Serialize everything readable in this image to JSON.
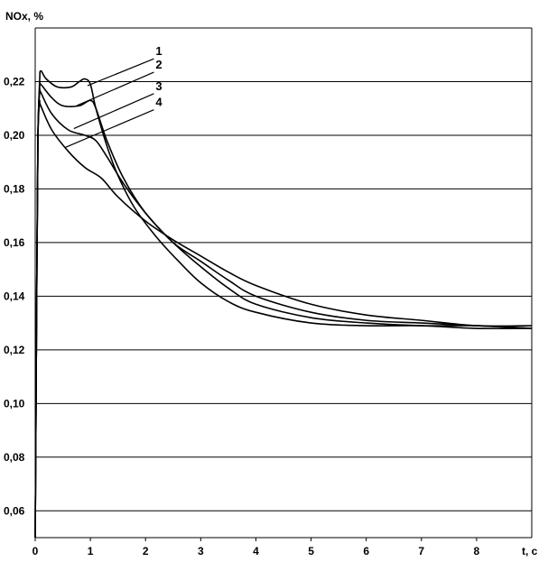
{
  "chart_data": {
    "type": "line",
    "ylabel": "NOx, %",
    "xlabel": "t, c",
    "xlim": [
      0,
      9
    ],
    "ylim": [
      0.05,
      0.24
    ],
    "grid": {
      "horizontal": true,
      "vertical": false
    },
    "x_ticks": [
      {
        "value": 0,
        "label": "0"
      },
      {
        "value": 1,
        "label": "1"
      },
      {
        "value": 2,
        "label": "2"
      },
      {
        "value": 3,
        "label": "3"
      },
      {
        "value": 4,
        "label": "4"
      },
      {
        "value": 5,
        "label": "5"
      },
      {
        "value": 6,
        "label": "6"
      },
      {
        "value": 7,
        "label": "7"
      },
      {
        "value": 8,
        "label": "8"
      }
    ],
    "y_ticks": [
      {
        "value": 0.06,
        "label": "0,06"
      },
      {
        "value": 0.08,
        "label": "0,08"
      },
      {
        "value": 0.1,
        "label": "0,10"
      },
      {
        "value": 0.12,
        "label": "0,12"
      },
      {
        "value": 0.14,
        "label": "0,14"
      },
      {
        "value": 0.16,
        "label": "0,16"
      },
      {
        "value": 0.18,
        "label": "0,18"
      },
      {
        "value": 0.2,
        "label": "0,20"
      },
      {
        "value": 0.22,
        "label": "0,22"
      }
    ],
    "series": [
      {
        "label": "1",
        "x": [
          0,
          0.03,
          0.05,
          0.08,
          0.1,
          0.2,
          0.4,
          0.65,
          0.8,
          0.9,
          1.0,
          1.1,
          1.3,
          1.5,
          1.8,
          2.2,
          2.6,
          3.0,
          3.5,
          4.0,
          5.0,
          6.0,
          7.0,
          8.0,
          9.0
        ],
        "y": [
          0.05,
          0.15,
          0.2,
          0.22,
          0.224,
          0.221,
          0.218,
          0.218,
          0.22,
          0.221,
          0.219,
          0.21,
          0.196,
          0.185,
          0.173,
          0.162,
          0.153,
          0.145,
          0.138,
          0.134,
          0.13,
          0.129,
          0.129,
          0.128,
          0.128
        ]
      },
      {
        "label": "2",
        "x": [
          0,
          0.03,
          0.05,
          0.08,
          0.1,
          0.3,
          0.5,
          0.8,
          1.0,
          1.1,
          1.3,
          1.6,
          2.0,
          2.5,
          3.0,
          3.5,
          4.0,
          5.0,
          6.0,
          7.0,
          8.0,
          9.0
        ],
        "y": [
          0.05,
          0.15,
          0.2,
          0.218,
          0.219,
          0.214,
          0.211,
          0.211,
          0.213,
          0.21,
          0.198,
          0.184,
          0.171,
          0.16,
          0.151,
          0.143,
          0.137,
          0.132,
          0.13,
          0.129,
          0.129,
          0.128
        ]
      },
      {
        "label": "3",
        "x": [
          0,
          0.03,
          0.05,
          0.08,
          0.1,
          0.3,
          0.6,
          0.9,
          1.1,
          1.3,
          1.6,
          2.0,
          2.5,
          3.0,
          3.5,
          4.0,
          5.0,
          6.0,
          7.0,
          8.0,
          9.0
        ],
        "y": [
          0.05,
          0.15,
          0.2,
          0.216,
          0.216,
          0.208,
          0.202,
          0.2,
          0.198,
          0.192,
          0.182,
          0.171,
          0.16,
          0.153,
          0.146,
          0.14,
          0.134,
          0.131,
          0.13,
          0.129,
          0.128
        ]
      },
      {
        "label": "4",
        "x": [
          0,
          0.03,
          0.05,
          0.08,
          0.1,
          0.3,
          0.6,
          0.9,
          1.2,
          1.5,
          2.0,
          2.5,
          3.0,
          3.5,
          4.0,
          5.0,
          6.0,
          7.0,
          8.0,
          9.0
        ],
        "y": [
          0.05,
          0.15,
          0.2,
          0.212,
          0.211,
          0.202,
          0.194,
          0.188,
          0.184,
          0.177,
          0.168,
          0.161,
          0.155,
          0.149,
          0.144,
          0.137,
          0.133,
          0.131,
          0.129,
          0.129
        ]
      }
    ],
    "callouts": [
      {
        "label": "1",
        "x_start": 0.95,
        "y_start": 0.2185,
        "x_end": 2.15,
        "y_end": 0.2285
      },
      {
        "label": "2",
        "x_start": 0.75,
        "y_start": 0.211,
        "x_end": 2.15,
        "y_end": 0.2235
      },
      {
        "label": "3",
        "x_start": 0.7,
        "y_start": 0.2025,
        "x_end": 2.15,
        "y_end": 0.2155
      },
      {
        "label": "4",
        "x_start": 0.55,
        "y_start": 0.1955,
        "x_end": 2.15,
        "y_end": 0.2095
      }
    ]
  }
}
